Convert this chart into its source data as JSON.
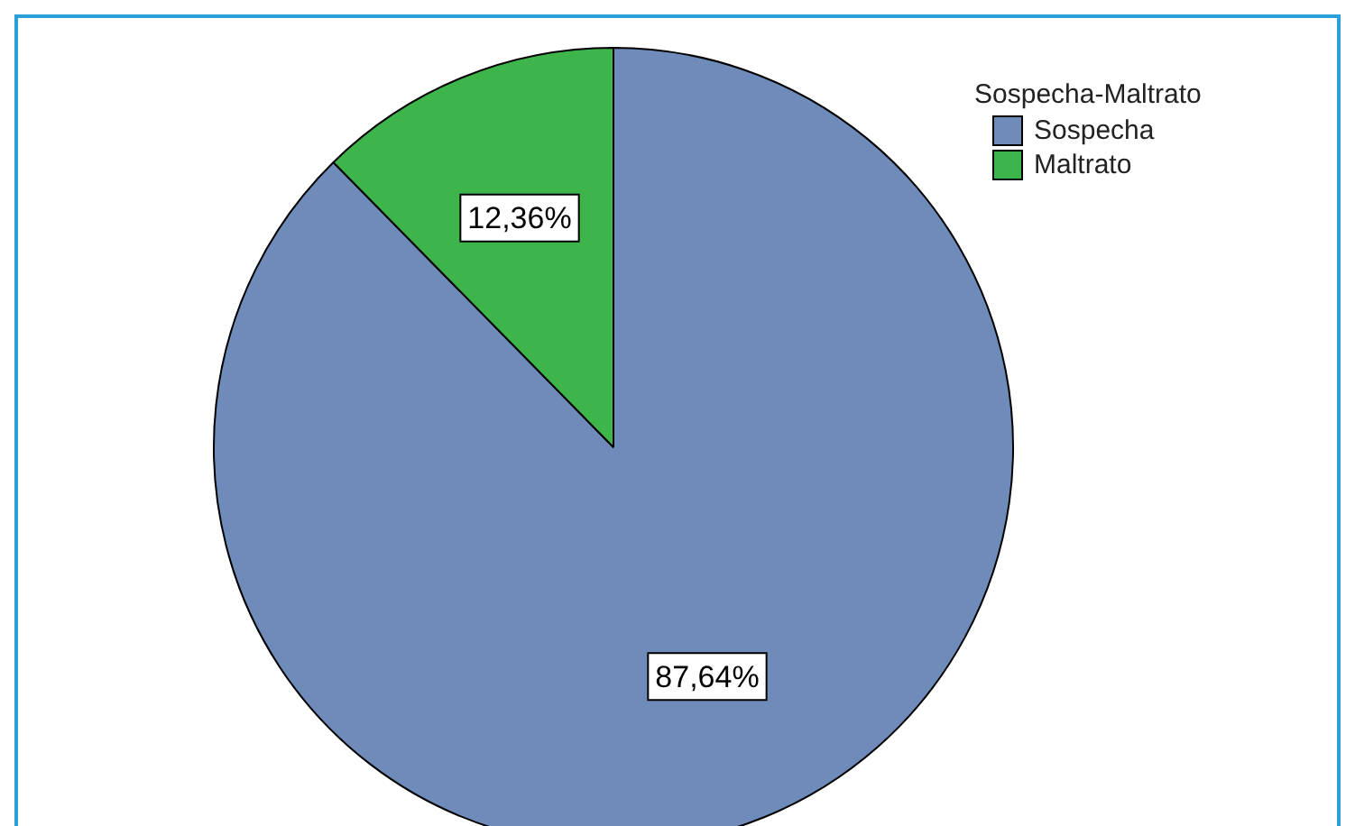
{
  "chart_data": {
    "type": "pie",
    "legend_title": "Sospecha-Maltrato",
    "categories": [
      "Sospecha",
      "Maltrato"
    ],
    "values": [
      87.64,
      12.36
    ],
    "colors": [
      "#6e8bb9",
      "#3db54a"
    ],
    "value_labels": [
      "87,64%",
      "12,36%"
    ],
    "legend": "top right"
  }
}
